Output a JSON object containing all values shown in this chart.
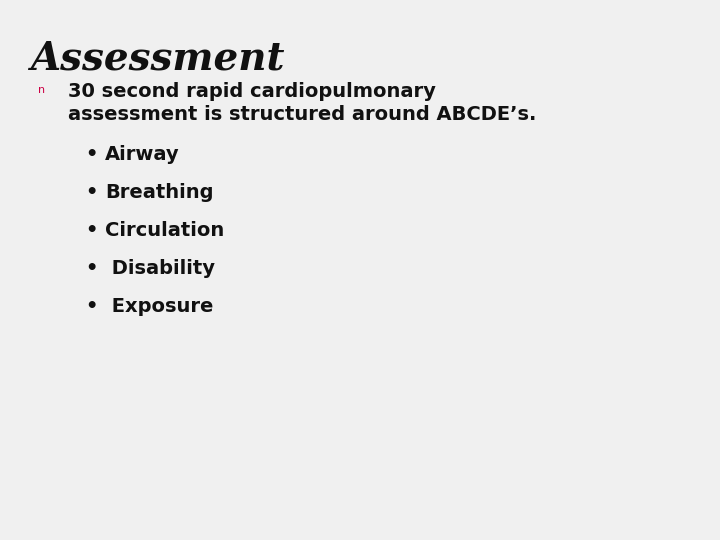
{
  "title": "Assessment",
  "title_style": "italic",
  "title_fontsize": 28,
  "title_color": "#111111",
  "title_font": "serif",
  "background_color": "#f0f0f0",
  "bullet_label": "n",
  "bullet_label_color": "#cc0044",
  "bullet_label_fontsize": 8,
  "main_text_line1": "30 second rapid cardiopulmonary",
  "main_text_line2": "assessment is structured around ABCDE’s.",
  "main_text_fontsize": 14,
  "main_text_color": "#111111",
  "sub_bullet_char": "•",
  "sub_items": [
    "Airway",
    "Breathing",
    "Circulation",
    " Disability",
    " Exposure"
  ],
  "sub_fontsize": 14,
  "sub_color": "#111111"
}
